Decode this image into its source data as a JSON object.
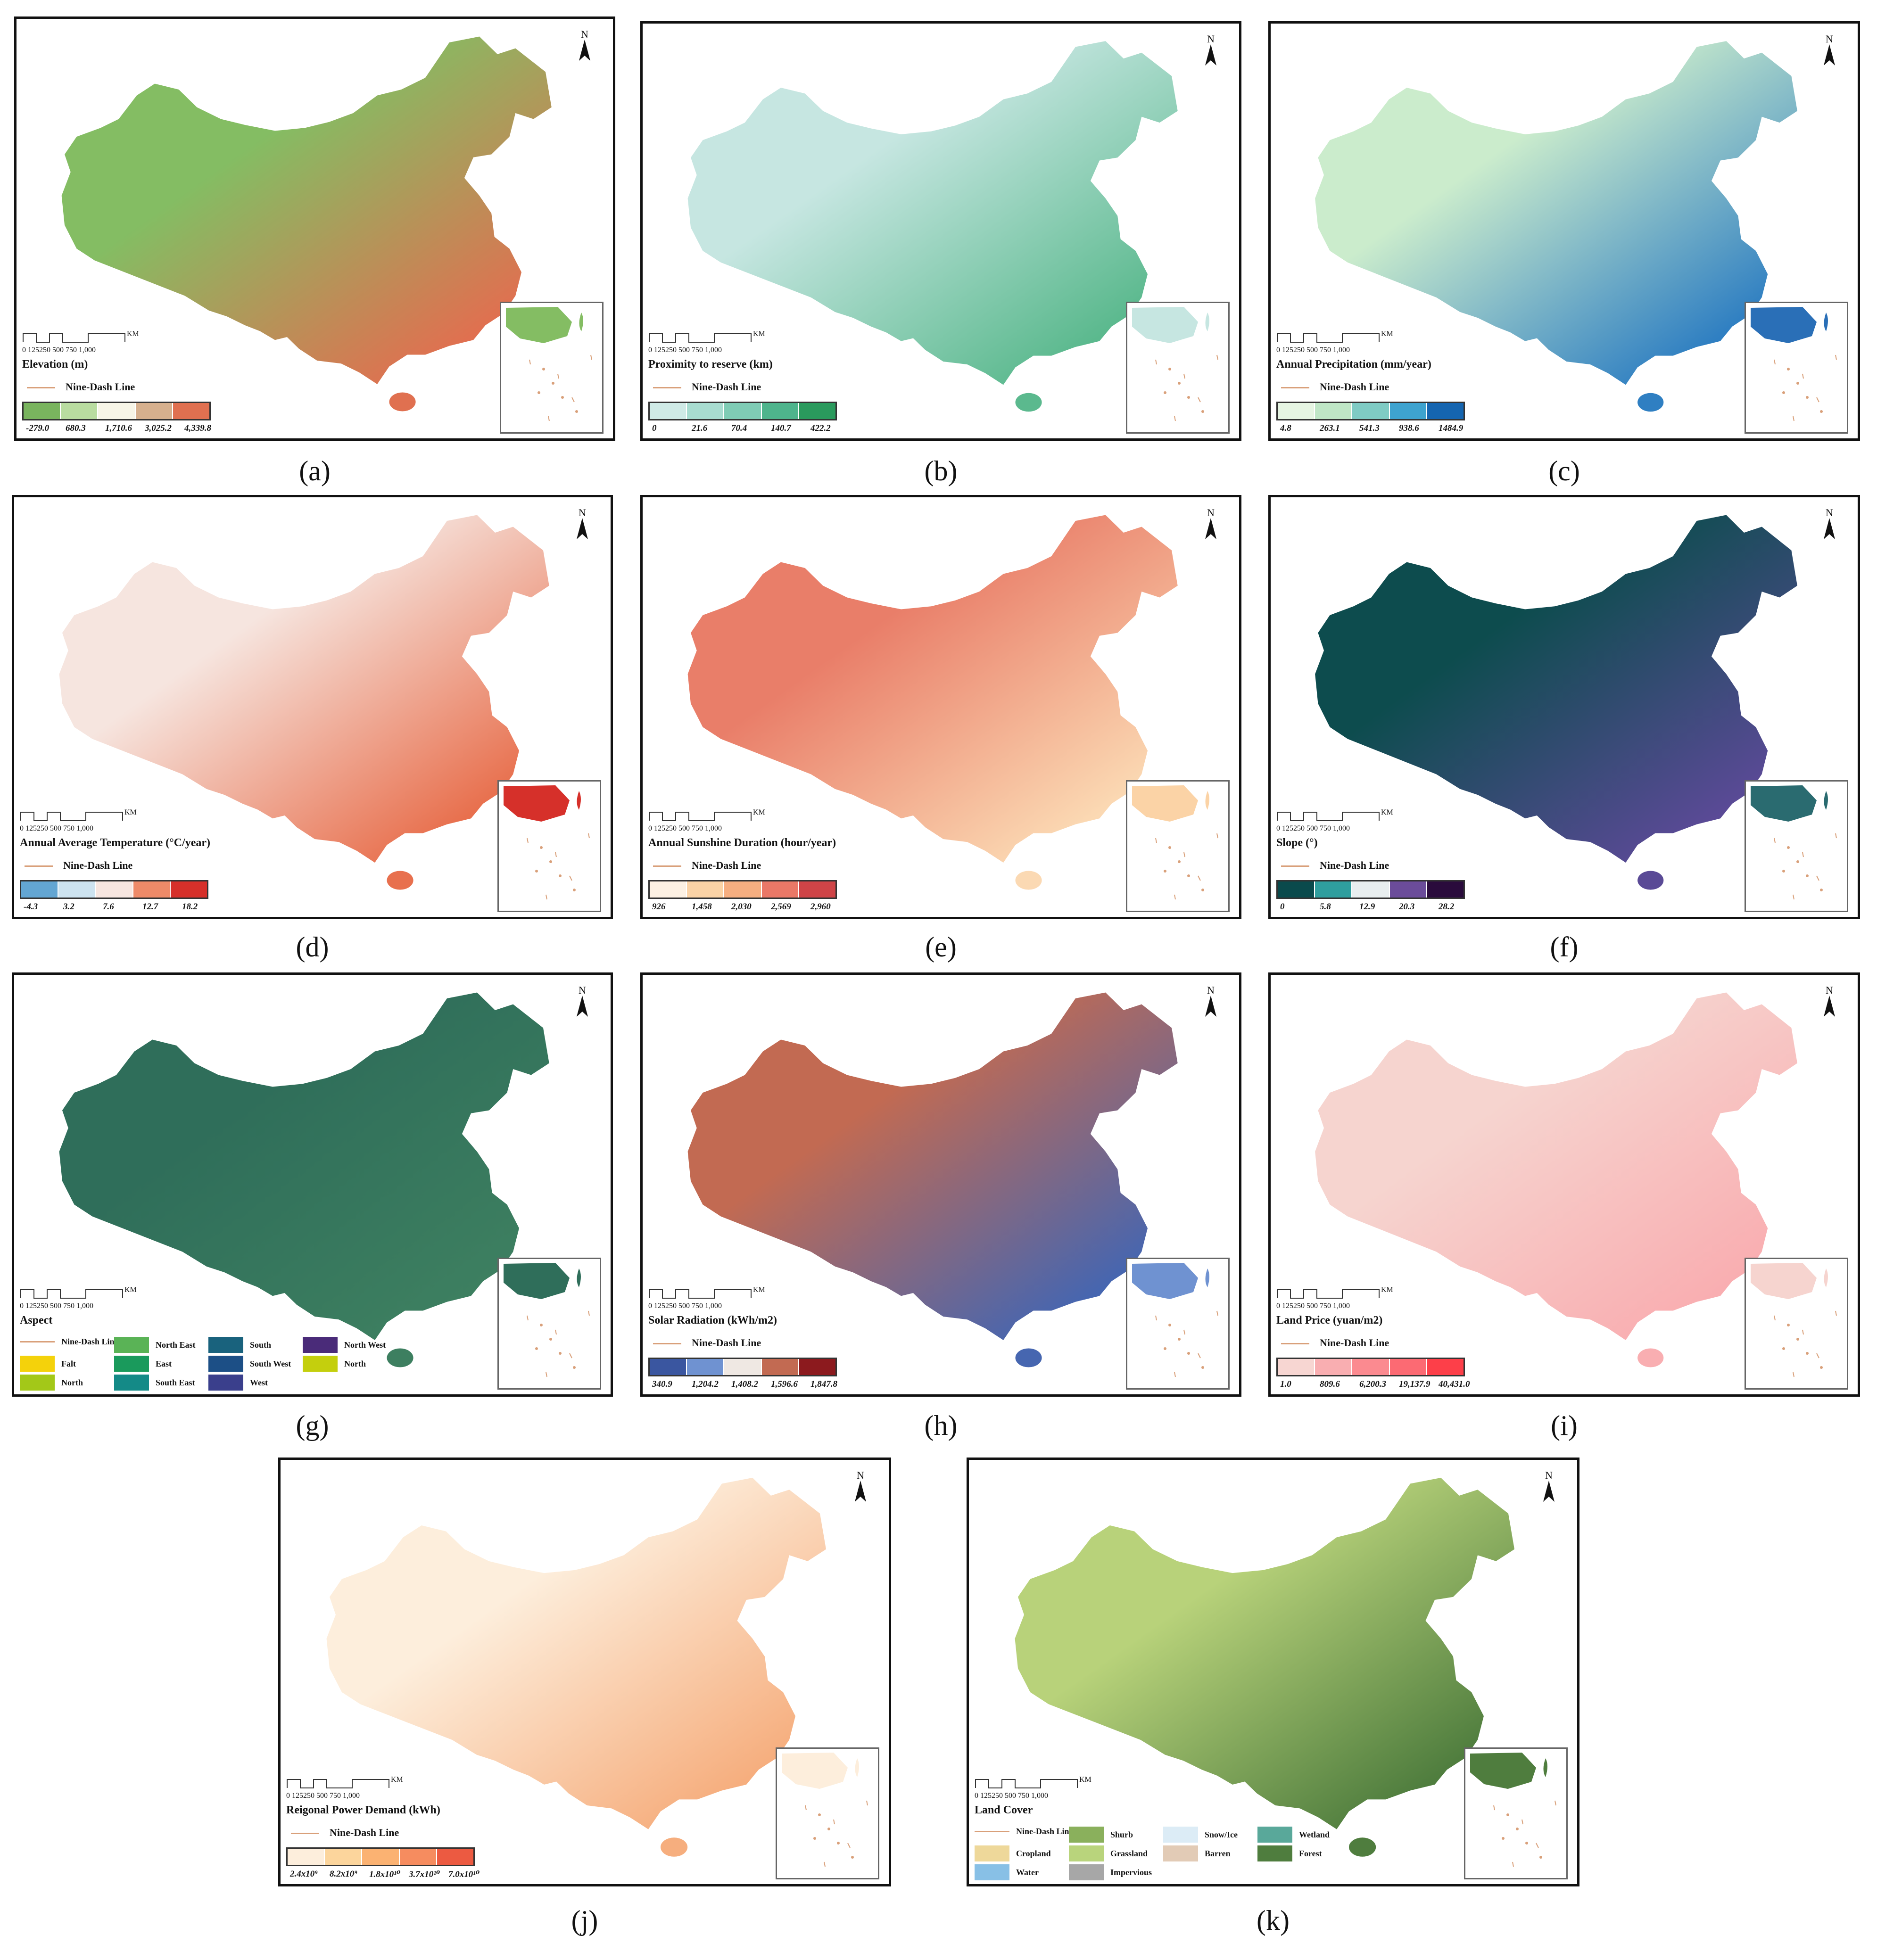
{
  "north_label": "N",
  "scale": {
    "numbers": "0  125250   500    750   1,000",
    "unit": "KM"
  },
  "nine_dash_label": "Nine-Dash Line",
  "panels": {
    "a": {
      "caption": "(a)",
      "title": "Elevation (m)",
      "colors": [
        "#79b45e",
        "#b9dca0",
        "#f7f5e7",
        "#d6b08e",
        "#e07050"
      ],
      "values": [
        "-279.0",
        "680.3",
        "1,710.6",
        "3,025.2",
        "4,339.8"
      ],
      "fill": "#84bd63",
      "fill2": "#e07050",
      "inset": "#84bd63"
    },
    "b": {
      "caption": "(b)",
      "title": "Proximity to reserve (km)",
      "colors": [
        "#cfeae6",
        "#a8dcd0",
        "#7fccb5",
        "#4eb48c",
        "#2a9a5d"
      ],
      "values": [
        "0",
        "21.6",
        "70.4",
        "140.7",
        "422.2"
      ],
      "fill": "#c6e6e1",
      "fill2": "#5bb98e",
      "inset": "#c6e6e1"
    },
    "c": {
      "caption": "(c)",
      "title": "Annual Precipitation (mm/year)",
      "colors": [
        "#e6f5e3",
        "#bfe6c6",
        "#7fcbc4",
        "#3ea3cf",
        "#1565b0"
      ],
      "values": [
        "4.8",
        "263.1",
        "541.3",
        "938.6",
        "1484.9"
      ],
      "fill": "#cbeccc",
      "fill2": "#2f7fc2",
      "inset": "#2a6fb7"
    },
    "d": {
      "caption": "(d)",
      "title": "Annual Average Temperature (°C/year)",
      "colors": [
        "#63a6d3",
        "#cde3f0",
        "#f7e6e0",
        "#ee8a68",
        "#d6302a"
      ],
      "values": [
        "-4.3",
        "3.2",
        "7.6",
        "12.7",
        "18.2"
      ],
      "fill": "#f6e5df",
      "fill2": "#e8704e",
      "inset": "#d6302a"
    },
    "e": {
      "caption": "(e)",
      "title": "Annual Sunshine Duration (hour/year)",
      "colors": [
        "#fdf1e3",
        "#fbd3a6",
        "#f6ae80",
        "#ea7867",
        "#cf4447"
      ],
      "values": [
        "926",
        "1,458",
        "2,030",
        "2,569",
        "2,960"
      ],
      "fill": "#e97e69",
      "fill2": "#fbd9b3",
      "inset": "#fbd3a6"
    },
    "f": {
      "caption": "(f)",
      "title": "Slope (°)",
      "colors": [
        "#0a4a4c",
        "#2f9e9e",
        "#e8eeef",
        "#6b4c9a",
        "#2a0b3c"
      ],
      "values": [
        "0",
        "5.8",
        "12.9",
        "20.3",
        "28.2"
      ],
      "fill": "#0d4c4e",
      "fill2": "#5a4a96",
      "inset": "#2a6b70"
    },
    "g": {
      "caption": "(g)",
      "title": "Aspect",
      "fill": "#2f6e5a",
      "fill2": "#3d7f60",
      "inset": "#2f6e5a",
      "categories": [
        {
          "label": "Nine-Dash Line",
          "color": "line"
        },
        {
          "label": "North East",
          "color": "#5ab356"
        },
        {
          "label": "South",
          "color": "#19627d"
        },
        {
          "label": "North West",
          "color": "#4a2b79"
        },
        {
          "label": "Falt",
          "color": "#f4d20b"
        },
        {
          "label": "East",
          "color": "#1a9a5c"
        },
        {
          "label": "South West",
          "color": "#1c4f86"
        },
        {
          "label": "North",
          "color": "#c4cf0d"
        },
        {
          "label": "North",
          "color": "#a3c818"
        },
        {
          "label": "South East",
          "color": "#148a87"
        },
        {
          "label": "West",
          "color": "#3a3f8c"
        }
      ]
    },
    "h": {
      "caption": "(h)",
      "title": "Solar Radiation (kWh/m2)",
      "colors": [
        "#3a56a0",
        "#6f92d1",
        "#efe8e3",
        "#c26a52",
        "#8c1a1e"
      ],
      "values": [
        "340.9",
        "1,204.2",
        "1,408.2",
        "1,596.6",
        "1,847.8"
      ],
      "fill": "#c26a52",
      "fill2": "#4666b0",
      "inset": "#6f92d1"
    },
    "i": {
      "caption": "(i)",
      "title": "Land Price (yuan/m2)",
      "colors": [
        "#f7d6d2",
        "#f9aeb1",
        "#fb8a90",
        "#fc6a73",
        "#fd3f49"
      ],
      "values": [
        "1.0",
        "809.6",
        "6,200.3",
        "19,137.9",
        "40,431.0"
      ],
      "fill": "#f6d4cf",
      "fill2": "#f9aeb1",
      "inset": "#f6d4cf"
    },
    "j": {
      "caption": "(j)",
      "title": "Reigonal Power Demand (kWh)",
      "colors": [
        "#fdeedc",
        "#fcd59c",
        "#fbb272",
        "#f68c5f",
        "#ec5a41"
      ],
      "values": [
        "2.4x10⁹",
        "8.2x10⁹",
        "1.8x10¹⁰",
        "3.7x10¹⁰",
        "7.0x10¹⁰"
      ],
      "fill": "#fdeedc",
      "fill2": "#f6ae7e",
      "inset": "#fdeedc"
    },
    "k": {
      "caption": "(k)",
      "title": "Land Cover",
      "fill": "#b8d27a",
      "fill2": "#4f7d3e",
      "inset": "#4f7d3e",
      "categories": [
        {
          "label": "Nine-Dash Line",
          "color": "line"
        },
        {
          "label": "Shurb",
          "color": "#8ab05c"
        },
        {
          "label": "Snow/Ice",
          "color": "#dcecf6"
        },
        {
          "label": "Wetland",
          "color": "#59a89a"
        },
        {
          "label": "Cropland",
          "color": "#eed89a"
        },
        {
          "label": "Grassland",
          "color": "#b9d47c"
        },
        {
          "label": "Barren",
          "color": "#e2cbb6"
        },
        {
          "label": "Forest",
          "color": "#4f7d3e"
        },
        {
          "label": "Water",
          "color": "#88c0e6"
        },
        {
          "label": "Impervious",
          "color": "#a7a7a7"
        }
      ]
    }
  }
}
